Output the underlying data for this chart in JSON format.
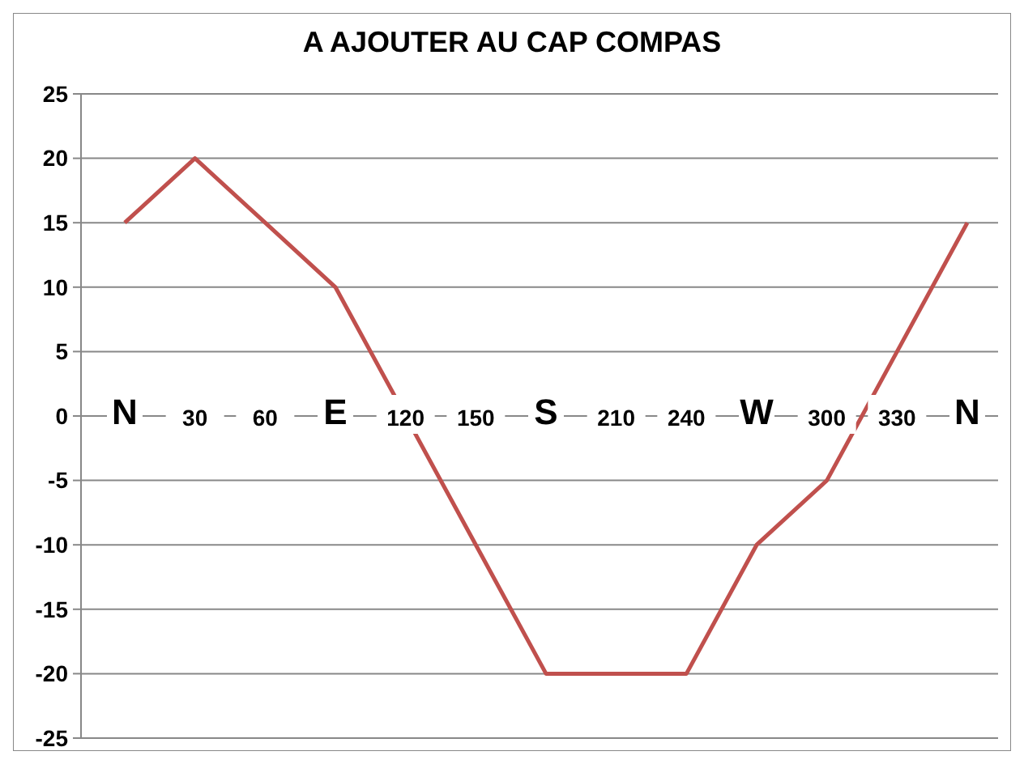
{
  "chart_data": {
    "type": "line",
    "title": "A AJOUTER AU CAP COMPAS",
    "categories": [
      "N",
      "30",
      "60",
      "E",
      "120",
      "150",
      "S",
      "210",
      "240",
      "W",
      "300",
      "330",
      "N"
    ],
    "series": [
      {
        "color": "#c0504d",
        "values": [
          15,
          20,
          15,
          10,
          0,
          -10,
          -20,
          -20,
          -20,
          -10,
          -5,
          5,
          15
        ]
      }
    ],
    "ylim": [
      -25,
      25
    ],
    "yticks": [
      -25,
      -20,
      -15,
      -10,
      -5,
      0,
      5,
      10,
      15,
      20,
      25
    ],
    "grid": "y",
    "marker": "none",
    "line_style": "solid"
  }
}
